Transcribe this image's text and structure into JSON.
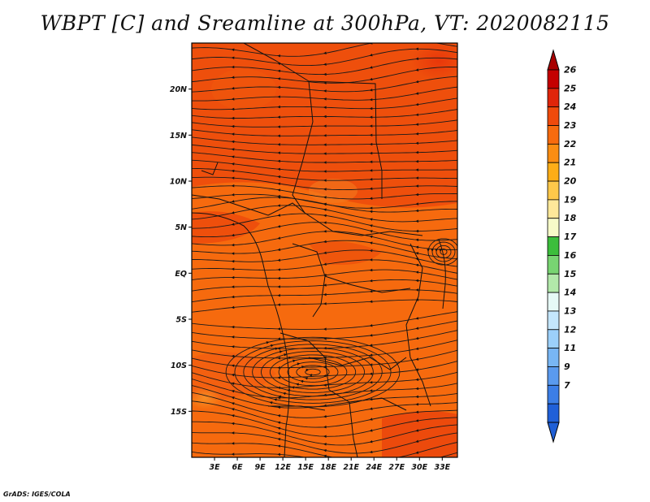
{
  "title": "WBPT [C] and Sreamline at 300hPa, VT: 2020082115",
  "credit": "GrADS: IGES/COLA",
  "map": {
    "lat_labels": [
      "20N",
      "15N",
      "10N",
      "5N",
      "EQ",
      "5S",
      "10S",
      "15S"
    ],
    "lat_values": [
      20,
      15,
      10,
      5,
      0,
      -5,
      -10,
      -15
    ],
    "lon_labels": [
      "3E",
      "6E",
      "9E",
      "12E",
      "15E",
      "18E",
      "21E",
      "24E",
      "27E",
      "30E",
      "33E"
    ],
    "lon_values": [
      3,
      6,
      9,
      12,
      15,
      18,
      21,
      24,
      27,
      30,
      33
    ],
    "lat_range": [
      -20,
      25
    ],
    "lon_range": [
      0,
      35
    ]
  },
  "colorbar": {
    "labels": [
      "26",
      "25",
      "24",
      "23",
      "22",
      "21",
      "20",
      "19",
      "18",
      "17",
      "16",
      "15",
      "14",
      "13",
      "12",
      "11",
      "9",
      "7"
    ],
    "colors": [
      "#c40000",
      "#e0250a",
      "#f04a0c",
      "#f76b0e",
      "#fa8d12",
      "#fdad17",
      "#fec84a",
      "#fee89a",
      "#f7fac8",
      "#3cbe3c",
      "#78d472",
      "#b2e8aa",
      "#e6f9f6",
      "#c4e6fc",
      "#9cd0fa",
      "#78b6f4",
      "#5a9aee",
      "#3c7ee6",
      "#2060d8"
    ],
    "max_arrow_color": "#a80000",
    "min_arrow_color": "#1f5fd6"
  }
}
